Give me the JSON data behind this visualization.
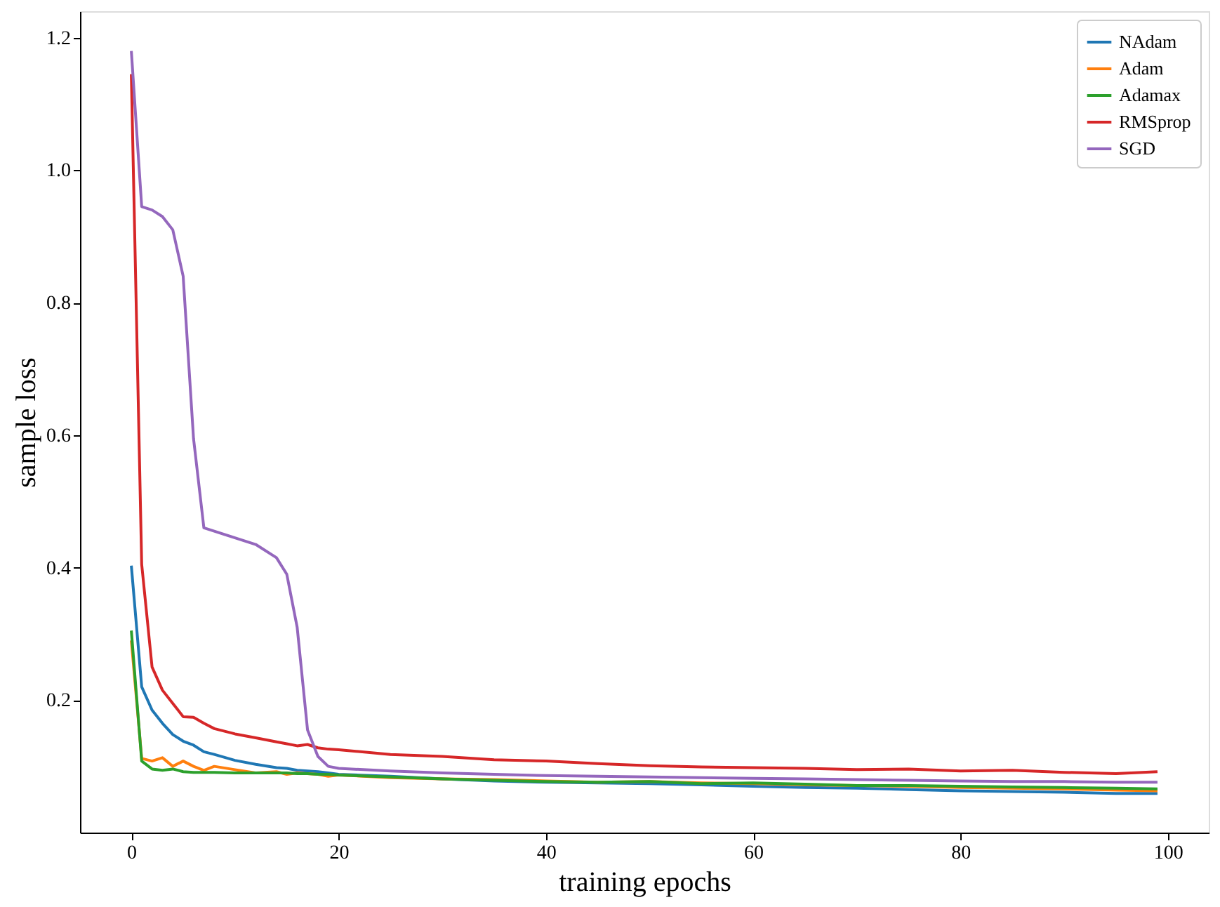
{
  "chart_data": {
    "type": "line",
    "xlabel": "training epochs",
    "ylabel": "sample loss",
    "x": [
      0,
      1,
      2,
      3,
      4,
      5,
      6,
      7,
      8,
      10,
      12,
      14,
      15,
      16,
      17,
      18,
      19,
      20,
      25,
      30,
      35,
      40,
      45,
      50,
      55,
      60,
      65,
      70,
      75,
      80,
      85,
      90,
      95,
      99
    ],
    "series": [
      {
        "name": "NAdam",
        "color": "#1f77b4",
        "values": [
          0.403,
          0.22,
          0.185,
          0.165,
          0.148,
          0.138,
          0.132,
          0.122,
          0.118,
          0.109,
          0.103,
          0.098,
          0.097,
          0.094,
          0.093,
          0.092,
          0.09,
          0.088,
          0.085,
          0.081,
          0.078,
          0.076,
          0.075,
          0.074,
          0.072,
          0.07,
          0.068,
          0.067,
          0.065,
          0.063,
          0.062,
          0.061,
          0.059,
          0.059
        ]
      },
      {
        "name": "Adam",
        "color": "#ff7f0e",
        "values": [
          0.29,
          0.112,
          0.108,
          0.113,
          0.1,
          0.108,
          0.1,
          0.094,
          0.1,
          0.095,
          0.09,
          0.092,
          0.088,
          0.09,
          0.089,
          0.088,
          0.085,
          0.087,
          0.083,
          0.081,
          0.08,
          0.078,
          0.076,
          0.077,
          0.075,
          0.074,
          0.072,
          0.071,
          0.07,
          0.068,
          0.067,
          0.066,
          0.064,
          0.063
        ]
      },
      {
        "name": "Adamax",
        "color": "#2ca02c",
        "values": [
          0.305,
          0.108,
          0.096,
          0.094,
          0.096,
          0.092,
          0.091,
          0.091,
          0.091,
          0.09,
          0.09,
          0.09,
          0.09,
          0.089,
          0.089,
          0.088,
          0.088,
          0.087,
          0.084,
          0.081,
          0.079,
          0.077,
          0.076,
          0.077,
          0.074,
          0.075,
          0.073,
          0.071,
          0.071,
          0.07,
          0.069,
          0.068,
          0.067,
          0.066
        ]
      },
      {
        "name": "RMSprop",
        "color": "#d62728",
        "values": [
          1.145,
          0.405,
          0.25,
          0.215,
          0.195,
          0.175,
          0.174,
          0.165,
          0.157,
          0.149,
          0.143,
          0.137,
          0.134,
          0.131,
          0.133,
          0.128,
          0.126,
          0.125,
          0.118,
          0.115,
          0.11,
          0.108,
          0.104,
          0.101,
          0.099,
          0.098,
          0.097,
          0.095,
          0.096,
          0.093,
          0.094,
          0.091,
          0.089,
          0.092
        ]
      },
      {
        "name": "SGD",
        "color": "#9467bd",
        "values": [
          1.18,
          0.945,
          0.94,
          0.93,
          0.91,
          0.84,
          0.595,
          0.46,
          0.455,
          0.445,
          0.435,
          0.415,
          0.39,
          0.31,
          0.155,
          0.115,
          0.1,
          0.097,
          0.093,
          0.09,
          0.088,
          0.086,
          0.085,
          0.084,
          0.083,
          0.082,
          0.081,
          0.08,
          0.079,
          0.078,
          0.077,
          0.077,
          0.076,
          0.076
        ]
      }
    ],
    "xlim": [
      -4.95,
      103.95
    ],
    "xticks": [
      0,
      20,
      40,
      60,
      80,
      100
    ],
    "ylim": [
      0.0,
      1.24
    ],
    "yticks": [
      {
        "value": 0.2,
        "label": "0.2"
      },
      {
        "value": 0.4,
        "label": "0.4"
      },
      {
        "value": 0.6,
        "label": "0.6"
      },
      {
        "value": 0.8,
        "label": "0.8"
      },
      {
        "value": 1.0,
        "label": "1.0"
      },
      {
        "value": 1.2,
        "label": "1.2"
      }
    ],
    "grid": false,
    "legend": "top right",
    "marker": "none",
    "line_style": "solid"
  }
}
